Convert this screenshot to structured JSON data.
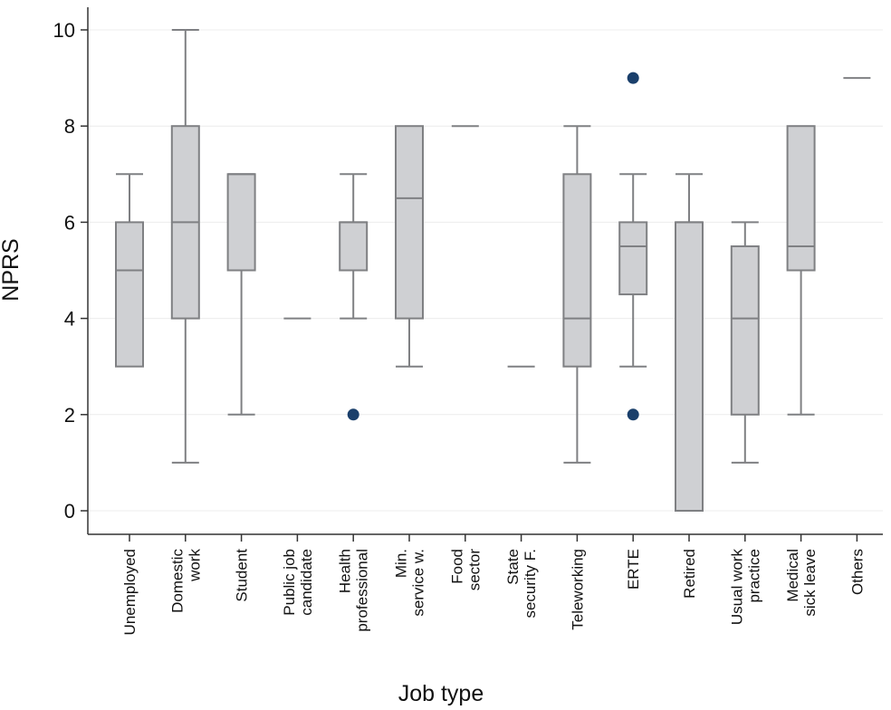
{
  "chart_data": {
    "type": "box",
    "ylabel": "NPRS",
    "xlabel": "Job type",
    "ylim": [
      0,
      10
    ],
    "yticks": [
      0,
      2,
      4,
      6,
      8,
      10
    ],
    "grid": true,
    "colors": {
      "box_fill": "#cfd0d3",
      "box_stroke": "#7f8083",
      "outlier": "#1a3f6b",
      "grid": "#ececec",
      "axis": "#333333"
    },
    "categories": [
      {
        "label": [
          "Unemployed"
        ],
        "whisker_low": 3,
        "q1": 3,
        "median": 5,
        "q3": 6,
        "whisker_high": 7,
        "outliers": []
      },
      {
        "label": [
          "Domestic",
          "work"
        ],
        "whisker_low": 1,
        "q1": 4,
        "median": 6,
        "q3": 8,
        "whisker_high": 10,
        "outliers": []
      },
      {
        "label": [
          "Student"
        ],
        "whisker_low": 2,
        "q1": 5,
        "median": 7,
        "q3": 7,
        "whisker_high": 7,
        "outliers": []
      },
      {
        "label": [
          "Public job",
          "candidate"
        ],
        "whisker_low": 4,
        "q1": 4,
        "median": 4,
        "q3": 4,
        "whisker_high": 4,
        "outliers": []
      },
      {
        "label": [
          "Health",
          "professional"
        ],
        "whisker_low": 4,
        "q1": 5,
        "median": 6,
        "q3": 6,
        "whisker_high": 7,
        "outliers": [
          2
        ]
      },
      {
        "label": [
          "Min.",
          "service w."
        ],
        "whisker_low": 3,
        "q1": 4,
        "median": 6.5,
        "q3": 8,
        "whisker_high": 8,
        "outliers": []
      },
      {
        "label": [
          "Food",
          "sector"
        ],
        "whisker_low": 8,
        "q1": 8,
        "median": 8,
        "q3": 8,
        "whisker_high": 8,
        "outliers": []
      },
      {
        "label": [
          "State",
          "security F."
        ],
        "whisker_low": 3,
        "q1": 3,
        "median": 3,
        "q3": 3,
        "whisker_high": 3,
        "outliers": []
      },
      {
        "label": [
          "Teleworking"
        ],
        "whisker_low": 1,
        "q1": 3,
        "median": 4,
        "q3": 7,
        "whisker_high": 8,
        "outliers": []
      },
      {
        "label": [
          "ERTE"
        ],
        "whisker_low": 3,
        "q1": 4.5,
        "median": 5.5,
        "q3": 6,
        "whisker_high": 7,
        "outliers": [
          2,
          9
        ]
      },
      {
        "label": [
          "Retired"
        ],
        "whisker_low": 0,
        "q1": 0,
        "median": 6,
        "q3": 6,
        "whisker_high": 7,
        "outliers": []
      },
      {
        "label": [
          "Usual work",
          "practice"
        ],
        "whisker_low": 1,
        "q1": 2,
        "median": 4,
        "q3": 5.5,
        "whisker_high": 6,
        "outliers": []
      },
      {
        "label": [
          "Medical",
          "sick leave"
        ],
        "whisker_low": 2,
        "q1": 5,
        "median": 5.5,
        "q3": 8,
        "whisker_high": 8,
        "outliers": []
      },
      {
        "label": [
          "Others"
        ],
        "whisker_low": 9,
        "q1": 9,
        "median": 9,
        "q3": 9,
        "whisker_high": 9,
        "outliers": []
      }
    ]
  }
}
